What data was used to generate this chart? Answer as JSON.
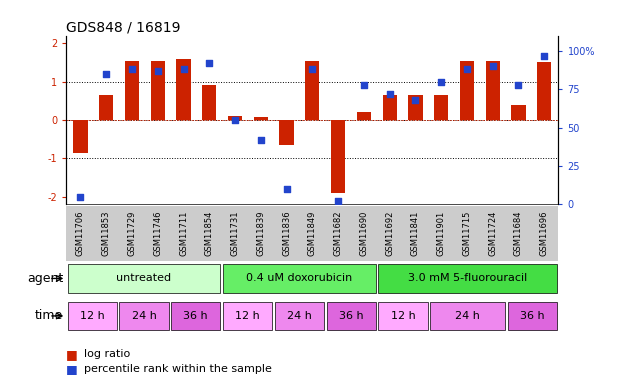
{
  "title": "GDS848 / 16819",
  "samples": [
    "GSM11706",
    "GSM11853",
    "GSM11729",
    "GSM11746",
    "GSM11711",
    "GSM11854",
    "GSM11731",
    "GSM11839",
    "GSM11836",
    "GSM11849",
    "GSM11682",
    "GSM11690",
    "GSM11692",
    "GSM11841",
    "GSM11901",
    "GSM11715",
    "GSM11724",
    "GSM11684",
    "GSM11696"
  ],
  "log_ratio": [
    -0.85,
    0.65,
    1.55,
    1.55,
    1.6,
    0.9,
    0.1,
    0.07,
    -0.65,
    1.55,
    -1.9,
    0.22,
    0.65,
    0.65,
    0.65,
    1.55,
    1.55,
    0.4,
    1.5
  ],
  "percentile": [
    5,
    85,
    88,
    87,
    88,
    92,
    55,
    42,
    10,
    88,
    2,
    78,
    72,
    68,
    80,
    88,
    90,
    78,
    97
  ],
  "bar_color": "#cc2200",
  "dot_color": "#2244cc",
  "agents": [
    {
      "label": "untreated",
      "start": 0,
      "end": 6,
      "color": "#ccffcc"
    },
    {
      "label": "0.4 uM doxorubicin",
      "start": 6,
      "end": 12,
      "color": "#66ee66"
    },
    {
      "label": "3.0 mM 5-fluorouracil",
      "start": 12,
      "end": 19,
      "color": "#44dd44"
    }
  ],
  "times": [
    {
      "label": "12 h",
      "start": 0,
      "end": 2,
      "color": "#ffaaff"
    },
    {
      "label": "24 h",
      "start": 2,
      "end": 4,
      "color": "#ee88ee"
    },
    {
      "label": "36 h",
      "start": 4,
      "end": 6,
      "color": "#dd66dd"
    },
    {
      "label": "12 h",
      "start": 6,
      "end": 8,
      "color": "#ffaaff"
    },
    {
      "label": "24 h",
      "start": 8,
      "end": 10,
      "color": "#ee88ee"
    },
    {
      "label": "36 h",
      "start": 10,
      "end": 12,
      "color": "#dd66dd"
    },
    {
      "label": "12 h",
      "start": 12,
      "end": 14,
      "color": "#ffaaff"
    },
    {
      "label": "24 h",
      "start": 14,
      "end": 17,
      "color": "#ee88ee"
    },
    {
      "label": "36 h",
      "start": 17,
      "end": 19,
      "color": "#dd66dd"
    }
  ],
  "ylim": [
    -2.2,
    2.2
  ],
  "y2lim": [
    0,
    110
  ],
  "yticks_left": [
    -2,
    -1,
    0,
    1,
    2
  ],
  "yticks_right": [
    0,
    25,
    50,
    75,
    100
  ],
  "bar_color_hex": "#cc2200",
  "dot_color_hex": "#2244cc",
  "bg_color": "#ffffff",
  "xticklabel_bg": "#cccccc",
  "title_fontsize": 10,
  "tick_fontsize": 7,
  "label_fontsize": 8,
  "agent_fontsize": 8,
  "time_fontsize": 8
}
